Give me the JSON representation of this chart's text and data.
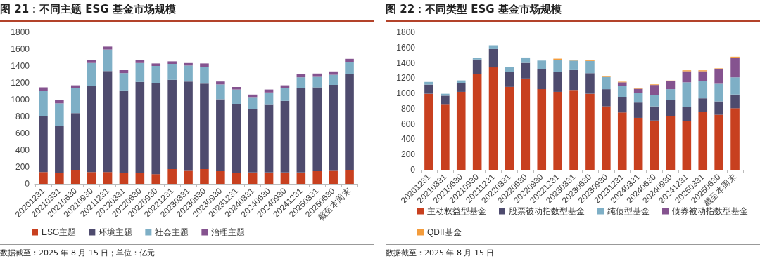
{
  "chart_data": [
    {
      "type": "bar",
      "title": "图 21：不同主题 ESG 基金市场规模",
      "stacked": true,
      "legend": "bottom",
      "grid": false,
      "ylim": [
        0,
        1800
      ],
      "yticks": [
        0,
        200,
        400,
        600,
        800,
        1000,
        1200,
        1400,
        1600,
        1800
      ],
      "categories": [
        "20201231",
        "20210331",
        "20210630",
        "20210930",
        "20211231",
        "20220331",
        "20220630",
        "20220930",
        "20221231",
        "20230331",
        "20230630",
        "20230930",
        "20231231",
        "20240331",
        "20240630",
        "20240930",
        "20241231",
        "20250331",
        "20250630",
        "截至本周末"
      ],
      "series": [
        {
          "name": "ESG主题",
          "color": "#c8401f",
          "values": [
            140,
            130,
            160,
            140,
            140,
            130,
            130,
            115,
            175,
            155,
            175,
            150,
            130,
            135,
            135,
            135,
            135,
            150,
            155,
            160
          ]
        },
        {
          "name": "环境主题",
          "color": "#4e4b6e",
          "values": [
            660,
            555,
            680,
            1025,
            1200,
            980,
            1080,
            1085,
            1060,
            1060,
            1015,
            855,
            820,
            755,
            810,
            850,
            1000,
            995,
            1020,
            1145
          ]
        },
        {
          "name": "社会主题",
          "color": "#7eafc6",
          "values": [
            300,
            270,
            295,
            270,
            255,
            205,
            225,
            200,
            190,
            190,
            200,
            175,
            170,
            140,
            140,
            150,
            130,
            125,
            120,
            140
          ]
        },
        {
          "name": "治理主题",
          "color": "#85538f",
          "values": [
            45,
            40,
            35,
            40,
            35,
            35,
            40,
            30,
            30,
            30,
            40,
            35,
            30,
            30,
            35,
            35,
            35,
            40,
            40,
            40
          ]
        }
      ],
      "annotations": [
        "数据截至：2025 年 8 月 15 日；单位：亿元"
      ]
    },
    {
      "type": "bar",
      "title": "图 22：不同类型 ESG 基金市场规模",
      "stacked": true,
      "legend": "bottom",
      "grid": false,
      "ylim": [
        0,
        1800
      ],
      "yticks": [
        0,
        200,
        400,
        600,
        800,
        1000,
        1200,
        1400,
        1600,
        1800
      ],
      "categories": [
        "20201231",
        "20210331",
        "20210630",
        "20210930",
        "20211231",
        "20220331",
        "20220630",
        "20220930",
        "20221231",
        "20230331",
        "20230630",
        "20230930",
        "20231231",
        "20240331",
        "20240630",
        "20240930",
        "20241231",
        "20250331",
        "20250630",
        "截至本周末"
      ],
      "series": [
        {
          "name": "主动权益型基金",
          "color": "#c8401f",
          "values": [
            995,
            860,
            1020,
            1255,
            1340,
            1085,
            1195,
            1055,
            1020,
            1045,
            995,
            830,
            750,
            680,
            645,
            700,
            635,
            755,
            720,
            805
          ]
        },
        {
          "name": "股票被动指数型基金",
          "color": "#4e4b6e",
          "values": [
            120,
            110,
            115,
            190,
            240,
            200,
            205,
            260,
            265,
            260,
            270,
            225,
            205,
            200,
            185,
            210,
            185,
            180,
            175,
            180
          ]
        },
        {
          "name": "纯债型基金",
          "color": "#7eafc6",
          "values": [
            35,
            25,
            35,
            25,
            50,
            65,
            70,
            115,
            155,
            125,
            160,
            160,
            140,
            130,
            150,
            145,
            325,
            225,
            230,
            225
          ]
        },
        {
          "name": "债券被动指数型基金",
          "color": "#85538f",
          "values": [
            0,
            0,
            0,
            0,
            0,
            0,
            0,
            0,
            0,
            0,
            0,
            0,
            50,
            50,
            130,
            105,
            145,
            130,
            195,
            260
          ]
        },
        {
          "name": "QDII基金",
          "color": "#f39c3c",
          "values": [
            0,
            0,
            0,
            0,
            0,
            0,
            0,
            0,
            15,
            10,
            10,
            8,
            8,
            7,
            8,
            8,
            12,
            12,
            8,
            10
          ]
        }
      ],
      "annotations": [
        "数据截至：2025 年 8 月 15 日"
      ]
    }
  ]
}
